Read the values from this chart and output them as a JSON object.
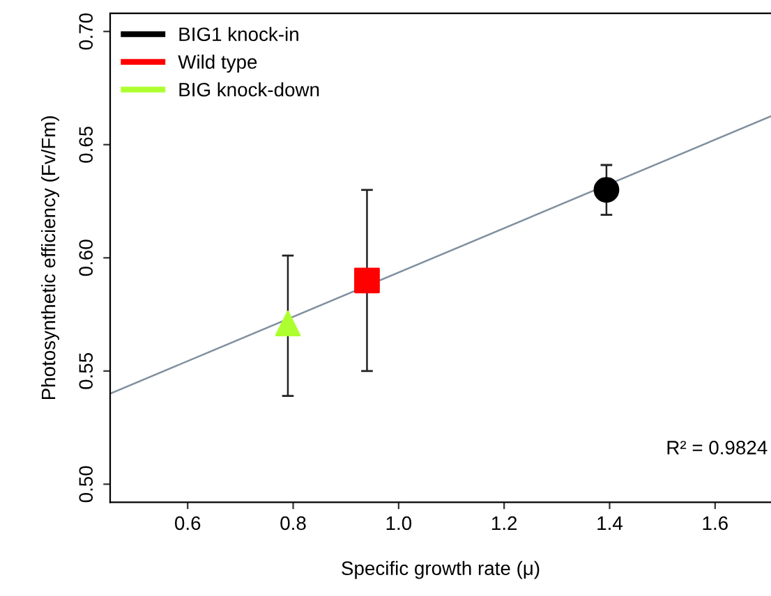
{
  "chart_data": {
    "type": "scatter",
    "xlabel": "Specific growth rate (μ)",
    "ylabel": "Photosynthetic efficiency (Fv/Fm)",
    "xlim": [
      0.453,
      1.706
    ],
    "xticks": [
      {
        "value": 0.6,
        "label": "0.6"
      },
      {
        "value": 0.8,
        "label": "0.8"
      },
      {
        "value": 1.0,
        "label": "1.0"
      },
      {
        "value": 1.2,
        "label": "1.2"
      },
      {
        "value": 1.4,
        "label": "1.4"
      },
      {
        "value": 1.6,
        "label": "1.6"
      }
    ],
    "ylim": [
      0.492,
      0.708
    ],
    "yticks": [
      {
        "value": 0.5,
        "label": "0.50"
      },
      {
        "value": 0.55,
        "label": "0.55"
      },
      {
        "value": 0.6,
        "label": "0.60"
      },
      {
        "value": 0.65,
        "label": "0.65"
      },
      {
        "value": 0.7,
        "label": "0.70"
      }
    ],
    "series": [
      {
        "name": "BIG1 knock-in",
        "color": "#000000",
        "marker": "circle",
        "x": [
          1.394
        ],
        "values": [
          0.63
        ],
        "errors": [
          [
            0.619,
            0.641
          ]
        ]
      },
      {
        "name": "Wild type",
        "color": "#ff0000",
        "marker": "square",
        "x": [
          0.94
        ],
        "values": [
          0.59
        ],
        "errors": [
          [
            0.55,
            0.63
          ]
        ]
      },
      {
        "name": "BIG knock-down",
        "color": "#adff2f",
        "marker": "triangle",
        "x": [
          0.79
        ],
        "values": [
          0.571
        ],
        "errors": [
          [
            0.539,
            0.601
          ]
        ]
      },
      {
        "type": "line",
        "color": "#8090a0",
        "x": [
          0.453,
          1.706
        ],
        "values": [
          0.54,
          0.6626
        ]
      }
    ],
    "annotations": [
      "R² = 0.9824"
    ],
    "legend": "top left",
    "grid": false
  }
}
